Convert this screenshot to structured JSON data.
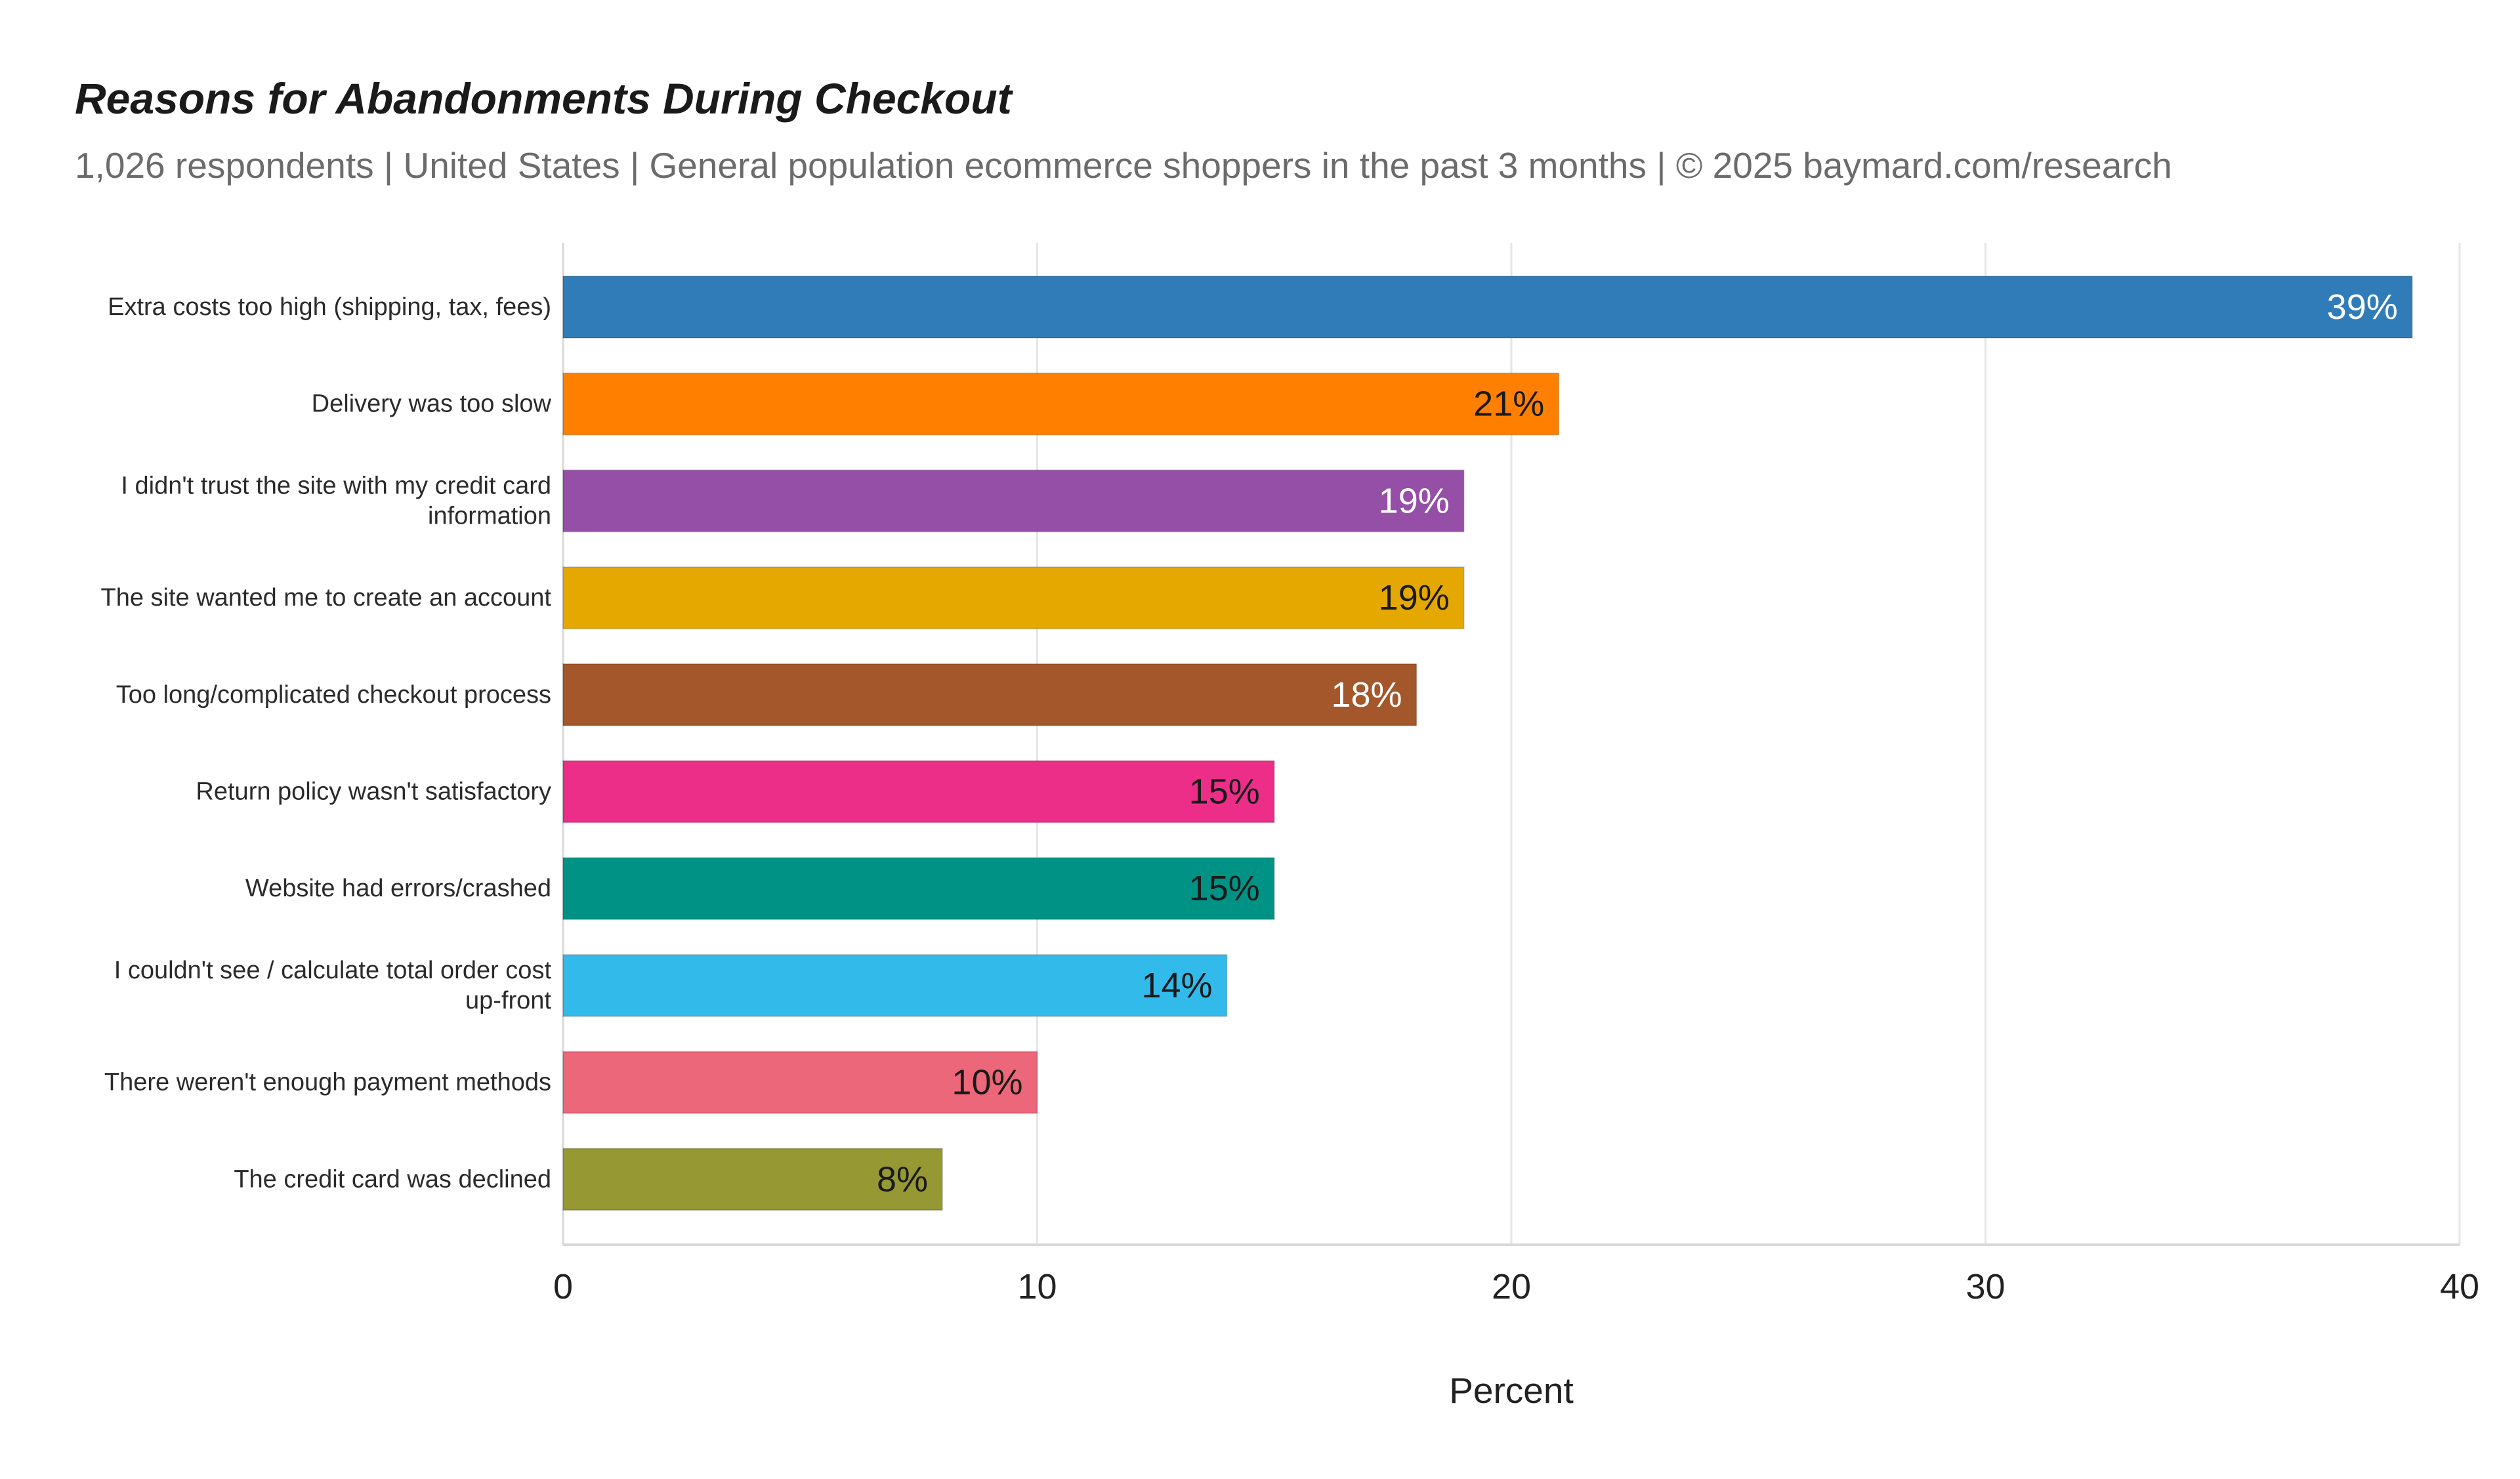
{
  "chart_data": {
    "type": "bar",
    "orientation": "horizontal",
    "title": "Reasons for Abandonments During Checkout",
    "subtitle": "1,026 respondents  |  United States  |  General population ecommerce shoppers in the past 3 months | © 2025 baymard.com/research",
    "xlabel": "Percent",
    "ylabel": "",
    "xlim": [
      0,
      40
    ],
    "xticks": [
      0,
      10,
      20,
      30,
      40
    ],
    "grid": true,
    "legend": "none",
    "value_suffix": "%",
    "categories": [
      [
        "Extra costs too high (shipping, tax, fees)"
      ],
      [
        "Delivery was too slow"
      ],
      [
        "I didn't trust the site with my credit card",
        "information"
      ],
      [
        "The site wanted me to create an account"
      ],
      [
        "Too long/complicated checkout process"
      ],
      [
        "Return policy wasn't satisfactory"
      ],
      [
        "Website had errors/crashed"
      ],
      [
        "I couldn't see / calculate total order cost",
        "up-front"
      ],
      [
        "There weren't enough payment methods"
      ],
      [
        "The credit card was declined"
      ]
    ],
    "values": [
      39,
      21,
      19,
      19,
      18,
      15,
      15,
      14,
      10,
      8
    ],
    "bar_colors": [
      "#2f7cb8",
      "#ff8000",
      "#964fa6",
      "#e5a800",
      "#a3572b",
      "#ec2e88",
      "#009385",
      "#31baea",
      "#ec6779",
      "#969834"
    ],
    "value_label_colors": [
      "#ffffff",
      "#1a1a1a",
      "#ffffff",
      "#1a1a1a",
      "#ffffff",
      "#1a1a1a",
      "#1a1a1a",
      "#1a1a1a",
      "#1a1a1a",
      "#1a1a1a"
    ],
    "gridline_color": "#e6e6e6",
    "axis_color": "#d9d9d9"
  }
}
